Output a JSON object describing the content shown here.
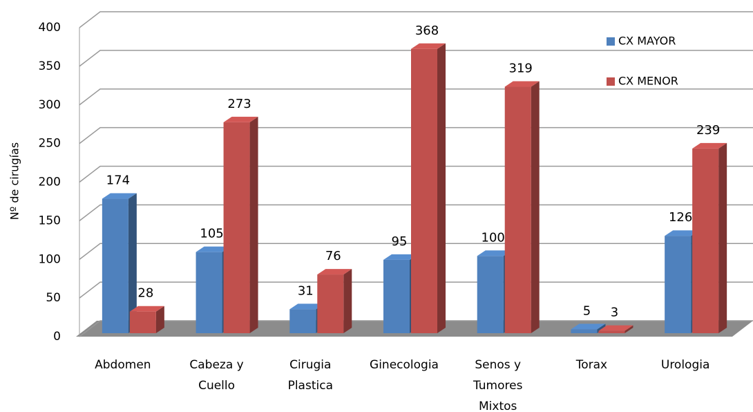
{
  "chart_data": {
    "type": "bar3d",
    "y_label": "Nº de cirugías",
    "categories": [
      "Abdomen",
      "Cabeza y Cuello",
      "Cirugia Plastica",
      "Ginecologia",
      "Senos y Tumores Mixtos",
      "Torax",
      "Urologia"
    ],
    "series": [
      {
        "name": "CX MAYOR",
        "color": "#4f81bd",
        "values": [
          174,
          105,
          31,
          95,
          100,
          5,
          126
        ]
      },
      {
        "name": "CX MENOR",
        "color": "#c0504d",
        "values": [
          28,
          273,
          76,
          368,
          319,
          3,
          239
        ]
      }
    ],
    "ylim": [
      0,
      400
    ],
    "yticks": [
      0,
      50,
      100,
      150,
      200,
      250,
      300,
      350,
      400
    ],
    "grid": true,
    "legend": "top-right"
  }
}
